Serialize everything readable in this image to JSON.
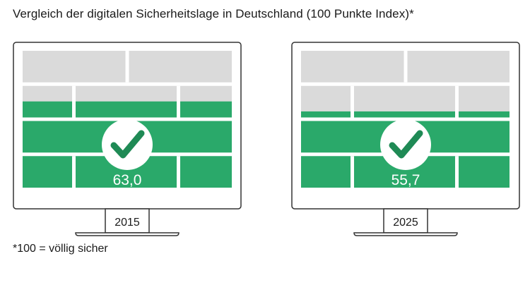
{
  "title": "Vergleich der digitalen Sicherheitslage in Deutschland (100 Punkte Index)*",
  "footnote": "*100 = völlig sicher",
  "colors": {
    "filled": "#2aa96a",
    "empty": "#dadada",
    "frame": "#333333",
    "check": "#1f8a55"
  },
  "chart_data": {
    "type": "bar",
    "categories": [
      "2015",
      "2025"
    ],
    "values": [
      63.0,
      55.7
    ],
    "value_labels": [
      "63,0",
      "55,7"
    ],
    "ylim": [
      0,
      100
    ]
  }
}
